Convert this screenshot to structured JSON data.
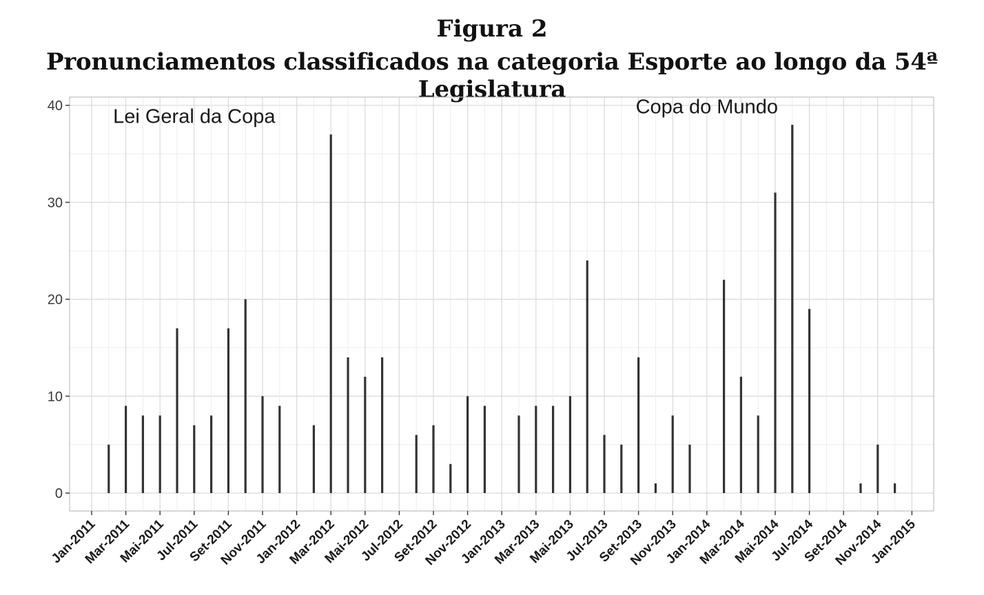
{
  "figure": {
    "label": "Figura 2",
    "caption": "Pronunciamentos classificados na categoria Esporte ao longo da 54ª Legislatura"
  },
  "chart_data": {
    "type": "bar",
    "grid": true,
    "ylim": [
      -2,
      41
    ],
    "ytick_values": [
      0,
      10,
      20,
      30,
      40
    ],
    "ytick_labels": [
      "0",
      "10",
      "20",
      "30",
      "40"
    ],
    "xtick_labels": [
      "Jan-2011",
      "Mar-2011",
      "Mai-2011",
      "Jul-2011",
      "Set-2011",
      "Nov-2011",
      "Jan-2012",
      "Mar-2012",
      "Mai-2012",
      "Jul-2012",
      "Set-2012",
      "Nov-2012",
      "Jan-2013",
      "Mar-2013",
      "Mai-2013",
      "Jul-2013",
      "Set-2013",
      "Nov-2013",
      "Jan-2014",
      "Mar-2014",
      "Mai-2014",
      "Jul-2014",
      "Set-2014",
      "Nov-2014",
      "Jan-2015"
    ],
    "categories": [
      "Fev-2011",
      "Mar-2011",
      "Abr-2011",
      "Mai-2011",
      "Jun-2011",
      "Jul-2011",
      "Ago-2011",
      "Set-2011",
      "Out-2011",
      "Nov-2011",
      "Dez-2011",
      "Fev-2012",
      "Mar-2012",
      "Abr-2012",
      "Mai-2012",
      "Jun-2012",
      "Ago-2012",
      "Set-2012",
      "Out-2012",
      "Nov-2012",
      "Dez-2012",
      "Fev-2013",
      "Mar-2013",
      "Abr-2013",
      "Mai-2013",
      "Jun-2013",
      "Jul-2013",
      "Ago-2013",
      "Set-2013",
      "Out-2013",
      "Nov-2013",
      "Dez-2013",
      "Fev-2014",
      "Mar-2014",
      "Abr-2014",
      "Mai-2014",
      "Jun-2014",
      "Jul-2014",
      "Out-2014",
      "Nov-2014",
      "Dez-2014"
    ],
    "values": [
      5,
      9,
      8,
      8,
      17,
      7,
      8,
      17,
      20,
      10,
      9,
      7,
      37,
      14,
      12,
      14,
      6,
      7,
      3,
      10,
      9,
      8,
      9,
      9,
      10,
      24,
      6,
      5,
      14,
      1,
      8,
      5,
      22,
      12,
      8,
      31,
      38,
      19,
      1,
      5,
      1
    ],
    "annotations": [
      {
        "text": "Lei Geral da Copa",
        "x": "Jul-2011",
        "y": 38.2
      },
      {
        "text": "Copa do Mundo",
        "x": "Jan-2014",
        "y": 39.2
      }
    ]
  }
}
